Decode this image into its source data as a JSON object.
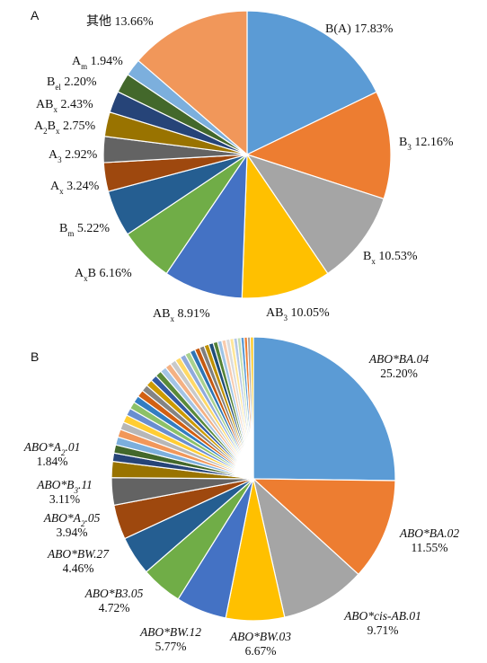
{
  "chart_data": [
    {
      "type": "pie",
      "panel_label": "A",
      "slices": [
        {
          "label": "B(A)",
          "value": 17.83,
          "value_text": "17.83%",
          "color": "#5b9bd5"
        },
        {
          "label": "B3",
          "base": "B",
          "sub": "3",
          "value": 12.16,
          "value_text": "12.16%",
          "color": "#ed7d31"
        },
        {
          "label": "Bx",
          "base": "B",
          "sub": "x",
          "value": 10.53,
          "value_text": "10.53%",
          "color": "#a5a5a5"
        },
        {
          "label": "AB3",
          "base": "AB",
          "sub": "3",
          "value": 10.05,
          "value_text": "10.05%",
          "color": "#ffc000"
        },
        {
          "label": "ABx",
          "base": "AB",
          "sub": "x",
          "value": 8.91,
          "value_text": "8.91%",
          "color": "#4472c4"
        },
        {
          "label": "AxB",
          "base": "A",
          "sub": "x",
          "tail": "B",
          "value": 6.16,
          "value_text": "6.16%",
          "color": "#70ad47"
        },
        {
          "label": "Bm",
          "base": "B",
          "sub": "m",
          "value": 5.22,
          "value_text": "5.22%",
          "color": "#255e91"
        },
        {
          "label": "Ax",
          "base": "A",
          "sub": "x",
          "value": 3.24,
          "value_text": "3.24%",
          "color": "#9e480e"
        },
        {
          "label": "A3",
          "base": "A",
          "sub": "3",
          "value": 2.92,
          "value_text": "2.92%",
          "color": "#636363"
        },
        {
          "label": "A2Bx",
          "base": "A",
          "sub": "2",
          "tail": "B",
          "sub2": "x",
          "value": 2.75,
          "value_text": "2.75%",
          "color": "#997300"
        },
        {
          "label": "ABx",
          "base": "AB",
          "sub": "x",
          "value": 2.43,
          "value_text": "2.43%",
          "color": "#264478"
        },
        {
          "label": "Bel",
          "base": "B",
          "sub": "el",
          "value": 2.2,
          "value_text": "2.20%",
          "color": "#43682b"
        },
        {
          "label": "Am",
          "base": "A",
          "sub": "m",
          "value": 1.94,
          "value_text": "1.94%",
          "color": "#7cafdd"
        },
        {
          "label": "其他",
          "value": 13.66,
          "value_text": "13.66%",
          "color": "#f1975a"
        }
      ]
    },
    {
      "type": "pie",
      "panel_label": "B",
      "slices": [
        {
          "label": "ABO*BA.04",
          "value": 25.2,
          "value_text": "25.20%",
          "color": "#5b9bd5"
        },
        {
          "label": "ABO*BA.02",
          "value": 11.55,
          "value_text": "11.55%",
          "color": "#ed7d31"
        },
        {
          "label": "ABO*cis-AB.01",
          "value": 9.71,
          "value_text": "9.71%",
          "color": "#a5a5a5"
        },
        {
          "label": "ABO*BW.03",
          "value": 6.67,
          "value_text": "6.67%",
          "color": "#ffc000"
        },
        {
          "label": "ABO*BW.12",
          "value": 5.77,
          "value_text": "5.77%",
          "color": "#4472c4"
        },
        {
          "label": "ABO*B3.05",
          "value": 4.72,
          "value_text": "4.72%",
          "color": "#70ad47"
        },
        {
          "label": "ABO*BW.27",
          "value": 4.46,
          "value_text": "4.46%",
          "color": "#255e91"
        },
        {
          "label": "ABO*A2.05",
          "base": "ABO*A",
          "sub": "2",
          "tail": ".05",
          "value": 3.94,
          "value_text": "3.94%",
          "color": "#9e480e"
        },
        {
          "label": "ABO*B3.11",
          "base": "ABO*B",
          "sub": "3",
          "tail": ".11",
          "value": 3.11,
          "value_text": "3.11%",
          "color": "#636363"
        },
        {
          "label": "ABO*A2.01",
          "base": "ABO*A",
          "sub": "2",
          "tail": ".01",
          "value": 1.84,
          "value_text": "1.84%",
          "color": "#997300"
        }
      ],
      "small_slice_colors": [
        "#264478",
        "#43682b",
        "#7cafdd",
        "#f1975a",
        "#b7b7b7",
        "#ffcd33",
        "#698ed0",
        "#8cc168",
        "#327dc2",
        "#d26012",
        "#848484",
        "#cc9a00",
        "#335aa1",
        "#5a8a39",
        "#a3c4e6",
        "#f4b183",
        "#c9c9c9",
        "#ffd966",
        "#8faadc",
        "#a9d18e",
        "#2e75b6",
        "#c55a11",
        "#7f7f7f",
        "#bf9000",
        "#1f4e79",
        "#548235",
        "#9dc3e6",
        "#f8cbad",
        "#dbdbdb",
        "#ffe699",
        "#b4c7e7",
        "#c5e0b4",
        "#5b9bd5",
        "#ed7d31",
        "#a5a5a5",
        "#ffc000"
      ]
    }
  ]
}
